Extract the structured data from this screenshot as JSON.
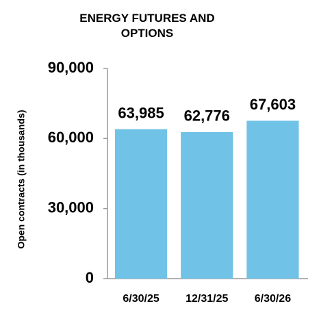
{
  "chart_data": {
    "type": "bar",
    "title": "ENERGY FUTURES AND OPTIONS",
    "y_label": "Open contracts (in thousands)",
    "categories": [
      "6/30/25",
      "12/31/25",
      "6/30/26"
    ],
    "values": [
      63985,
      62776,
      67603
    ],
    "value_labels": [
      "63,985",
      "62,776",
      "67,603"
    ],
    "color": "#70c3e6",
    "ylim": [
      0,
      90000
    ],
    "yticks": [
      0,
      {
        "value": 30000,
        "label": "30,000"
      },
      {
        "value": 60000,
        "label": "60,000"
      },
      {
        "value": 90000,
        "label": "90,000"
      }
    ],
    "grid": false
  }
}
